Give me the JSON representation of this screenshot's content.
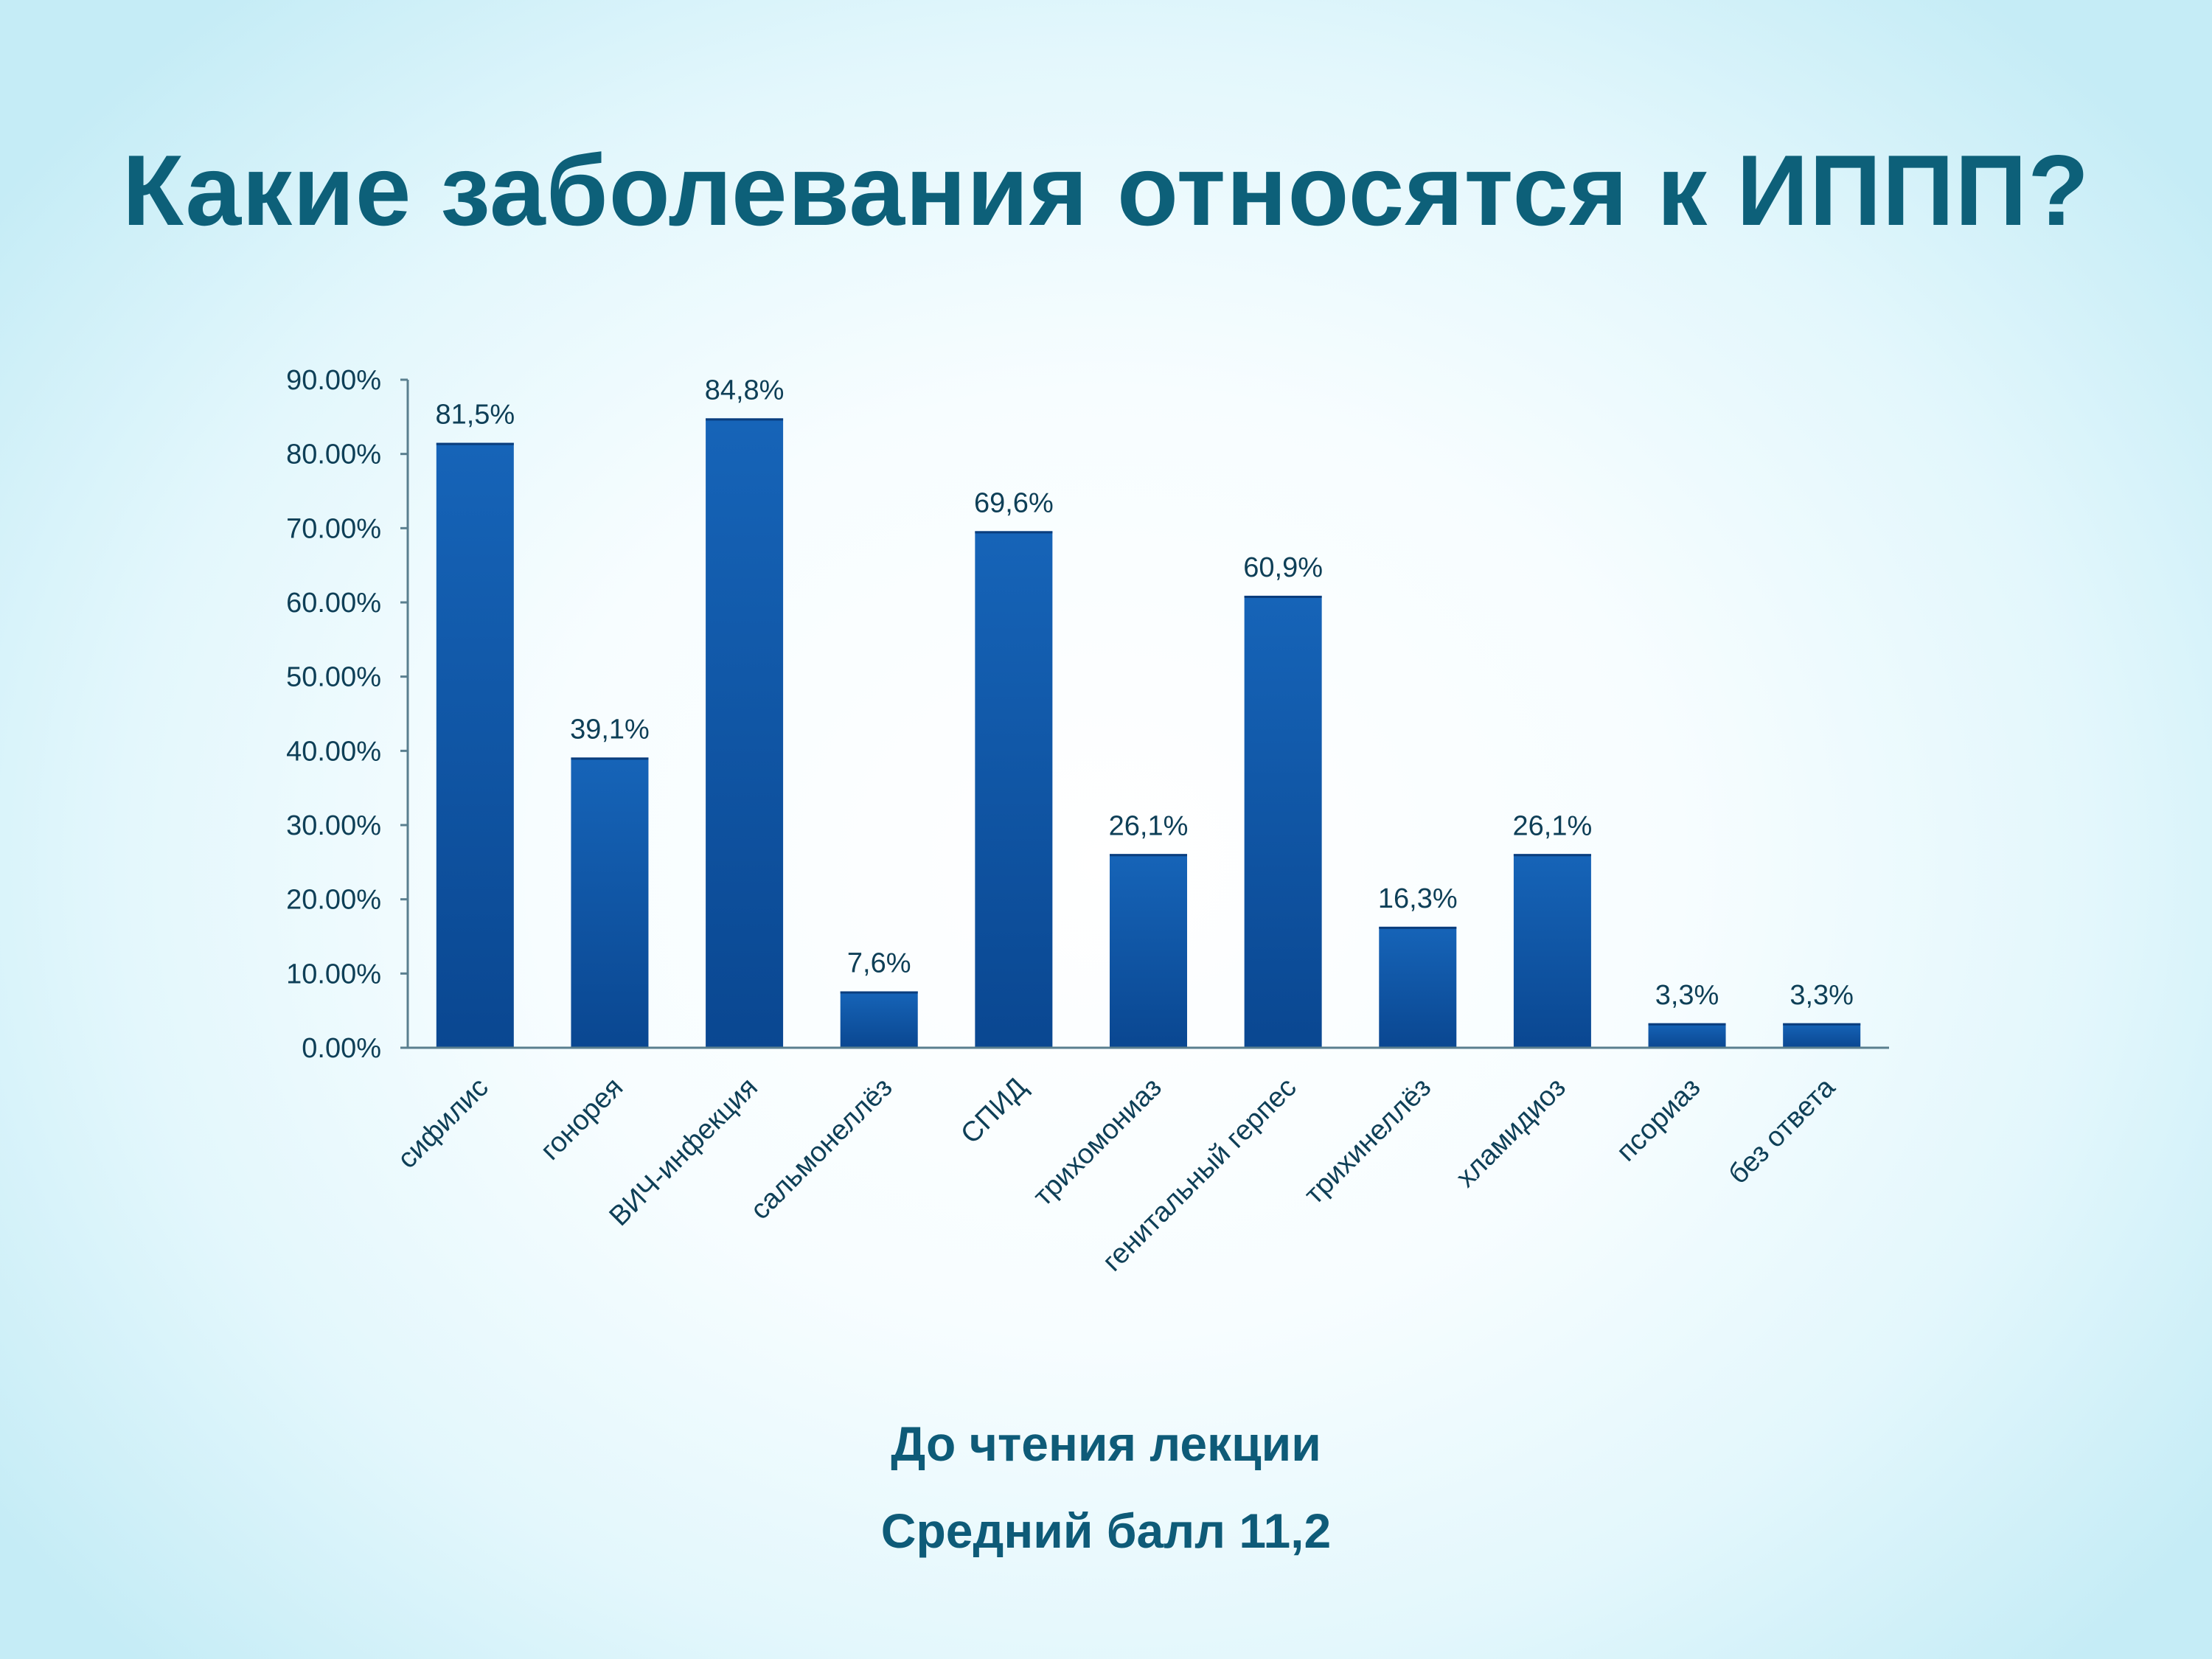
{
  "slide": {
    "title": "Какие заболевания относятся к ИППП?",
    "caption_line1": "До чтения лекции",
    "caption_line2": "Средний балл 11,2"
  },
  "colors": {
    "title": "#0d6079",
    "bar_top": "#1664b8",
    "bar_bottom": "#0a4791",
    "axis_text": "#0e3f57",
    "axis_line": "#5a7f8f"
  },
  "chart_data": {
    "type": "bar",
    "categories": [
      "сифилис",
      "гонорея",
      "ВИЧ-инфекция",
      "сальмонеллёз",
      "СПИД",
      "трихомониаз",
      "генитальный герпес",
      "трихинеллёз",
      "хламидиоз",
      "псориаз",
      "без ответа"
    ],
    "values": [
      81.5,
      39.1,
      84.8,
      7.6,
      69.6,
      26.1,
      60.9,
      16.3,
      26.1,
      3.3,
      3.3
    ],
    "data_labels": [
      "81,5%",
      "39,1%",
      "84,8%",
      "7,6%",
      "69,6%",
      "26,1%",
      "60,9%",
      "16,3%",
      "26,1%",
      "3,3%",
      "3,3%"
    ],
    "y_ticks": [
      0,
      10,
      20,
      30,
      40,
      50,
      60,
      70,
      80,
      90
    ],
    "y_tick_labels": [
      "0.00%",
      "10.00%",
      "20.00%",
      "30.00%",
      "40.00%",
      "50.00%",
      "60.00%",
      "70.00%",
      "80.00%",
      "90.00%"
    ],
    "ylim": [
      0,
      90
    ],
    "grid": false,
    "legend": "none",
    "title": "",
    "xlabel": "",
    "ylabel": ""
  }
}
